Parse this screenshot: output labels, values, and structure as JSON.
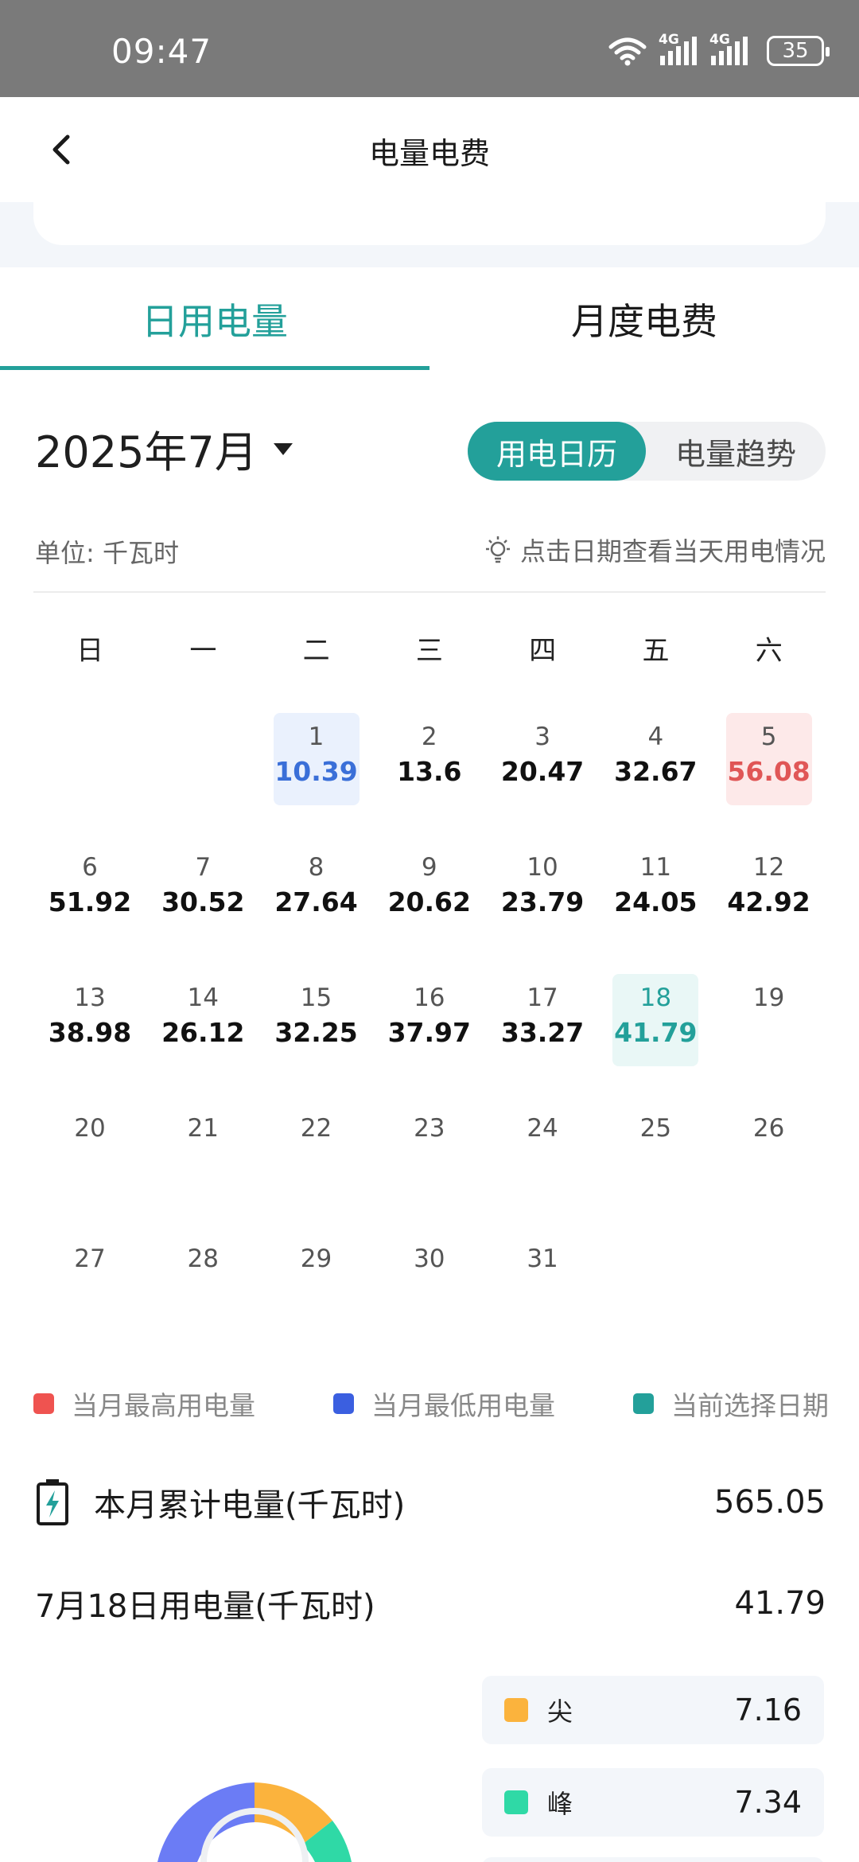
{
  "status_bar": {
    "time": "09:47",
    "signal_1": "4G",
    "signal_2": "4G",
    "battery": "35"
  },
  "nav": {
    "title": "电量电费"
  },
  "tabs": [
    {
      "label": "日用电量",
      "active": true
    },
    {
      "label": "月度电费",
      "active": false
    }
  ],
  "month_select": {
    "label": "2025年7月"
  },
  "view_toggle": {
    "calendar": "用电日历",
    "trend": "电量趋势",
    "active": "用电日历"
  },
  "unit_label": "单位: 千瓦时",
  "hint": "点击日期查看当天用电情况",
  "weekdays": [
    "日",
    "一",
    "二",
    "三",
    "四",
    "五",
    "六"
  ],
  "calendar": [
    {
      "day": "",
      "value": ""
    },
    {
      "day": "",
      "value": ""
    },
    {
      "day": "1",
      "value": "10.39",
      "mark": "low"
    },
    {
      "day": "2",
      "value": "13.6"
    },
    {
      "day": "3",
      "value": "20.47"
    },
    {
      "day": "4",
      "value": "32.67"
    },
    {
      "day": "5",
      "value": "56.08",
      "mark": "high"
    },
    {
      "day": "6",
      "value": "51.92"
    },
    {
      "day": "7",
      "value": "30.52"
    },
    {
      "day": "8",
      "value": "27.64"
    },
    {
      "day": "9",
      "value": "20.62"
    },
    {
      "day": "10",
      "value": "23.79"
    },
    {
      "day": "11",
      "value": "24.05"
    },
    {
      "day": "12",
      "value": "42.92"
    },
    {
      "day": "13",
      "value": "38.98"
    },
    {
      "day": "14",
      "value": "26.12"
    },
    {
      "day": "15",
      "value": "32.25"
    },
    {
      "day": "16",
      "value": "37.97"
    },
    {
      "day": "17",
      "value": "33.27"
    },
    {
      "day": "18",
      "value": "41.79",
      "mark": "selected"
    },
    {
      "day": "19",
      "value": ""
    },
    {
      "day": "20",
      "value": ""
    },
    {
      "day": "21",
      "value": ""
    },
    {
      "day": "22",
      "value": ""
    },
    {
      "day": "23",
      "value": ""
    },
    {
      "day": "24",
      "value": ""
    },
    {
      "day": "25",
      "value": ""
    },
    {
      "day": "26",
      "value": ""
    },
    {
      "day": "27",
      "value": ""
    },
    {
      "day": "28",
      "value": ""
    },
    {
      "day": "29",
      "value": ""
    },
    {
      "day": "30",
      "value": ""
    },
    {
      "day": "31",
      "value": ""
    }
  ],
  "legend": [
    {
      "label": "当月最高用电量",
      "color": "#ef5350"
    },
    {
      "label": "当月最低用电量",
      "color": "#3b5fe0"
    },
    {
      "label": "当前选择日期",
      "color": "#23a09a"
    }
  ],
  "summary": {
    "total_label": "本月累计电量(千瓦时)",
    "total_value": "565.05",
    "day_label": "7月18日用电量(千瓦时)",
    "day_value": "41.79"
  },
  "breakdown": [
    {
      "label": "尖",
      "value": "7.16",
      "color": "#fbb33d"
    },
    {
      "label": "峰",
      "value": "7.34",
      "color": "#2fd9a6"
    }
  ],
  "colors": {
    "accent": "#23a09a",
    "high": "#e05656",
    "low": "#3a6fd8",
    "donut_blue": "#6b7cf5"
  }
}
